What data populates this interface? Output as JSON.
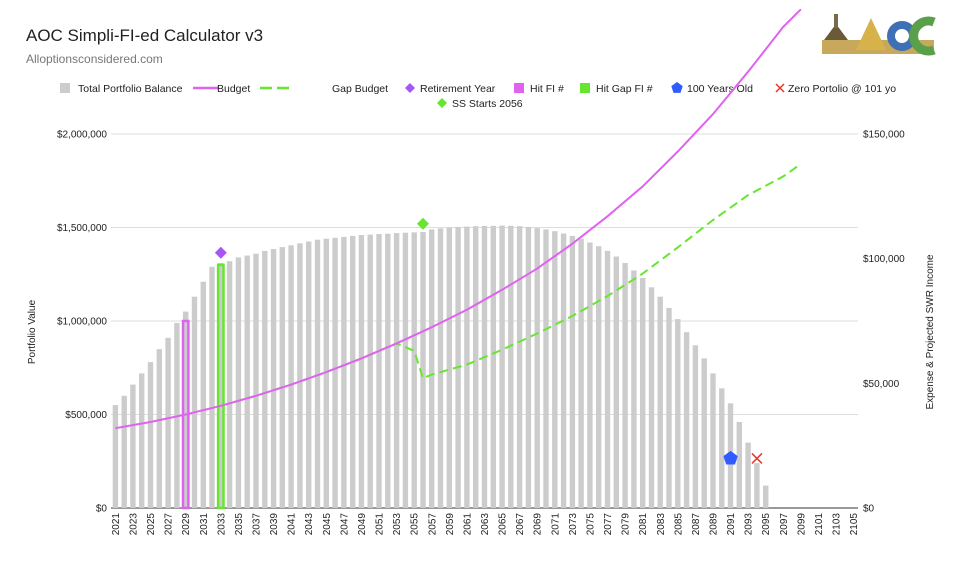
{
  "header": {
    "title": "AOC Simpli-FI-ed Calculator v3",
    "subtitle": "Alloptionsconsidered.com",
    "logo_text": "AOC"
  },
  "chart_data": {
    "type": "bar",
    "title": "AOC Simpli-FI-ed Calculator v3",
    "subtitle": "Alloptionsconsidered.com",
    "ylabel_left": "Portfolio Value",
    "ylabel_right": "Expense & Projected SWR Income",
    "ylim_left": [
      0,
      2000000
    ],
    "ylim_right": [
      0,
      150000
    ],
    "y_ticks_left": [
      "$0",
      "$500,000",
      "$1,000,000",
      "$1,500,000",
      "$2,000,000"
    ],
    "y_ticks_right": [
      "$0",
      "$50,000",
      "$100,000",
      "$150,000"
    ],
    "x_ticks": [
      "2021",
      "2023",
      "2025",
      "2027",
      "2029",
      "2031",
      "2033",
      "2035",
      "2037",
      "2039",
      "2041",
      "2043",
      "2045",
      "2047",
      "2049",
      "2051",
      "2053",
      "2055",
      "2057",
      "2059",
      "2061",
      "2063",
      "2065",
      "2067",
      "2069",
      "2071",
      "2073",
      "2075",
      "2077",
      "2079",
      "2081",
      "2083",
      "2085",
      "2087",
      "2089",
      "2091",
      "2093",
      "2095",
      "2097",
      "2099",
      "2101",
      "2103",
      "2105"
    ],
    "grid": true,
    "legend_position": "top",
    "colors": {
      "balance": "#cccccc",
      "budget": "#e062f0",
      "gap_budget": "#66e62e",
      "retirement_year": "#a855f7",
      "hit_fi": "#e062f0",
      "hit_gap_fi": "#66e62e",
      "hundred_years": "#2f5bff",
      "zero_portfolio": "#e8362b",
      "ss_starts": "#66e62e"
    },
    "legend": [
      {
        "key": "balance",
        "label": "Total Portfolio Balance",
        "shape": "square"
      },
      {
        "key": "budget",
        "label": "Budget",
        "shape": "line"
      },
      {
        "key": "gap_budget",
        "label": "Gap Budget",
        "shape": "dash"
      },
      {
        "key": "retirement_year",
        "label": "Retirement Year",
        "shape": "diamond"
      },
      {
        "key": "hit_fi",
        "label": "Hit FI #",
        "shape": "square"
      },
      {
        "key": "hit_gap_fi",
        "label": "Hit Gap FI #",
        "shape": "square"
      },
      {
        "key": "hundred_years",
        "label": "100 Years Old",
        "shape": "pentagon"
      },
      {
        "key": "zero_portfolio",
        "label": "Zero Portolio @ 101 yo",
        "shape": "x"
      },
      {
        "key": "ss_starts",
        "label": "SS Starts 2056",
        "shape": "diamond"
      }
    ],
    "years": [
      2021,
      2022,
      2023,
      2024,
      2025,
      2026,
      2027,
      2028,
      2029,
      2030,
      2031,
      2032,
      2033,
      2034,
      2035,
      2036,
      2037,
      2038,
      2039,
      2040,
      2041,
      2042,
      2043,
      2044,
      2045,
      2046,
      2047,
      2048,
      2049,
      2050,
      2051,
      2052,
      2053,
      2054,
      2055,
      2056,
      2057,
      2058,
      2059,
      2060,
      2061,
      2062,
      2063,
      2064,
      2065,
      2066,
      2067,
      2068,
      2069,
      2070,
      2071,
      2072,
      2073,
      2074,
      2075,
      2076,
      2077,
      2078,
      2079,
      2080,
      2081,
      2082,
      2083,
      2084,
      2085,
      2086,
      2087,
      2088,
      2089,
      2090,
      2091,
      2092,
      2093,
      2094,
      2095,
      2096,
      2097,
      2098,
      2099,
      2100,
      2101,
      2102,
      2103,
      2104,
      2105
    ],
    "series": [
      {
        "name": "Total Portfolio Balance",
        "values": [
          550000,
          600000,
          660000,
          720000,
          780000,
          850000,
          910000,
          990000,
          1050000,
          1130000,
          1210000,
          1290000,
          1310000,
          1320000,
          1340000,
          1350000,
          1360000,
          1375000,
          1385000,
          1395000,
          1405000,
          1415000,
          1425000,
          1435000,
          1440000,
          1445000,
          1450000,
          1455000,
          1460000,
          1462000,
          1465000,
          1467000,
          1470000,
          1472000,
          1474000,
          1476000,
          1490000,
          1495000,
          1500000,
          1503000,
          1505000,
          1507000,
          1508000,
          1509000,
          1510000,
          1509000,
          1507000,
          1503000,
          1497000,
          1490000,
          1480000,
          1468000,
          1455000,
          1440000,
          1420000,
          1400000,
          1375000,
          1345000,
          1310000,
          1270000,
          1230000,
          1180000,
          1130000,
          1070000,
          1010000,
          940000,
          870000,
          800000,
          720000,
          640000,
          560000,
          460000,
          350000,
          240000,
          120000,
          0,
          0,
          0,
          0,
          0,
          0,
          0,
          0,
          0,
          0
        ]
      },
      {
        "name": "Budget",
        "x": [
          2021,
          2025,
          2029,
          2033,
          2037,
          2041,
          2045,
          2049,
          2053,
          2057,
          2061,
          2065,
          2069,
          2073,
          2077,
          2081,
          2085,
          2089,
          2093,
          2097,
          2099
        ],
        "values": [
          32000,
          34500,
          37500,
          41000,
          45000,
          49500,
          54500,
          60000,
          66000,
          72500,
          79500,
          87500,
          96000,
          106000,
          117000,
          129000,
          143000,
          158000,
          175000,
          193000,
          200000
        ]
      },
      {
        "name": "Gap Budget",
        "x": [
          2033,
          2037,
          2041,
          2045,
          2049,
          2053,
          2055,
          2056,
          2057,
          2061,
          2065,
          2069,
          2073,
          2077,
          2081,
          2085,
          2089,
          2093,
          2097,
          2099
        ],
        "values": [
          41000,
          45000,
          49500,
          54500,
          60000,
          66000,
          63000,
          52000,
          53500,
          57500,
          63500,
          70000,
          77000,
          85000,
          94000,
          104500,
          115500,
          125500,
          133000,
          138000
        ]
      }
    ],
    "markers": {
      "retirement_year": {
        "x": 2033,
        "y_left": 1365000
      },
      "ss_starts": {
        "x": 2056,
        "y_left": 1520000
      },
      "hundred_years": {
        "x": 2091,
        "y_left": 265000
      },
      "zero_portfolio": {
        "x": 2094,
        "y_left": 265000
      },
      "hit_fi": {
        "x": 2029,
        "y_left": 1000000
      },
      "hit_gap_fi": {
        "x": 2033,
        "y_left": 1300000
      }
    }
  }
}
